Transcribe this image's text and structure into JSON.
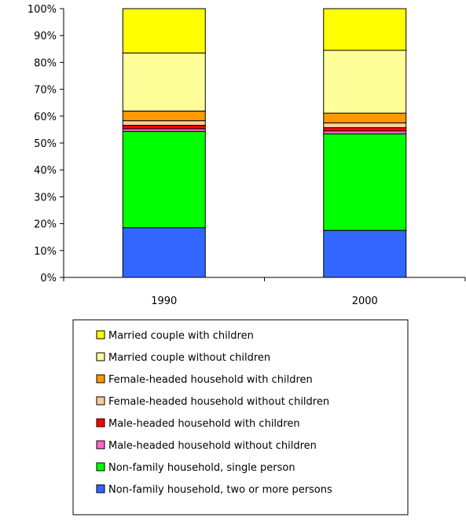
{
  "chart_data": {
    "type": "bar",
    "stacked": true,
    "categories": [
      "1990",
      "2000"
    ],
    "series": [
      {
        "name": "Non-family household, two or more persons",
        "color": "#3366ff",
        "values": [
          18.5,
          17.5
        ]
      },
      {
        "name": "Non-family household, single person",
        "color": "#00ff00",
        "values": [
          35.8,
          35.9
        ]
      },
      {
        "name": "Male-headed household without children",
        "color": "#ff66cc",
        "values": [
          1.0,
          1.1
        ]
      },
      {
        "name": "Male-headed household with children",
        "color": "#ff0000",
        "values": [
          1.3,
          1.2
        ]
      },
      {
        "name": "Female-headed household without children",
        "color": "#ffcc99",
        "values": [
          1.7,
          1.8
        ]
      },
      {
        "name": "Female-headed household with children",
        "color": "#ff9900",
        "values": [
          3.6,
          3.6
        ]
      },
      {
        "name": "Married couple without children",
        "color": "#ffff99",
        "values": [
          21.6,
          23.4
        ]
      },
      {
        "name": "Married couple with children",
        "color": "#ffff00",
        "values": [
          16.5,
          15.5
        ]
      }
    ],
    "yticks": [
      "0%",
      "10%",
      "20%",
      "30%",
      "40%",
      "50%",
      "60%",
      "70%",
      "80%",
      "90%",
      "100%"
    ],
    "ylim": [
      0,
      100
    ],
    "legend_position": "bottom",
    "legend_order": [
      7,
      6,
      5,
      4,
      3,
      2,
      1,
      0
    ],
    "grid": false
  }
}
